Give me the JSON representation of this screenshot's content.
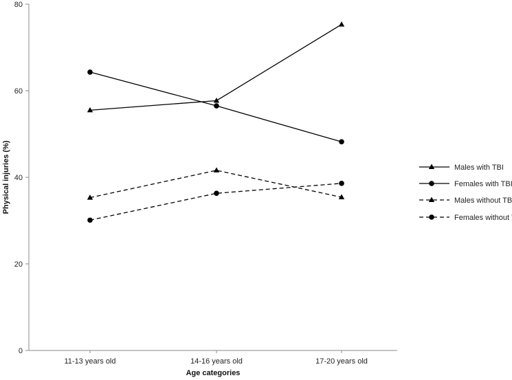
{
  "chart_data": {
    "type": "line",
    "categories": [
      "11-13 years old",
      "14-16 years old",
      "17-20 years old"
    ],
    "xlabel": "Age categories",
    "ylabel": "Physical injuries (%)",
    "ylim": [
      0,
      80
    ],
    "yticks": [
      "0",
      "20",
      "40",
      "60",
      "80"
    ],
    "grid": false,
    "legend_position": "right",
    "series": [
      {
        "name": "Males with TBI",
        "values": [
          55.5,
          57.7,
          75.3
        ],
        "marker": "triangle",
        "dash": "solid",
        "color": "#000000"
      },
      {
        "name": "Females with TBI",
        "values": [
          64.3,
          56.5,
          48.2
        ],
        "marker": "circle",
        "dash": "solid",
        "color": "#000000"
      },
      {
        "name": "Males without TBI",
        "values": [
          35.3,
          41.6,
          35.4
        ],
        "marker": "triangle",
        "dash": "dashed",
        "color": "#000000"
      },
      {
        "name": "Females without TBI",
        "values": [
          30.1,
          36.3,
          38.6
        ],
        "marker": "circle",
        "dash": "dashed",
        "color": "#000000"
      }
    ]
  }
}
